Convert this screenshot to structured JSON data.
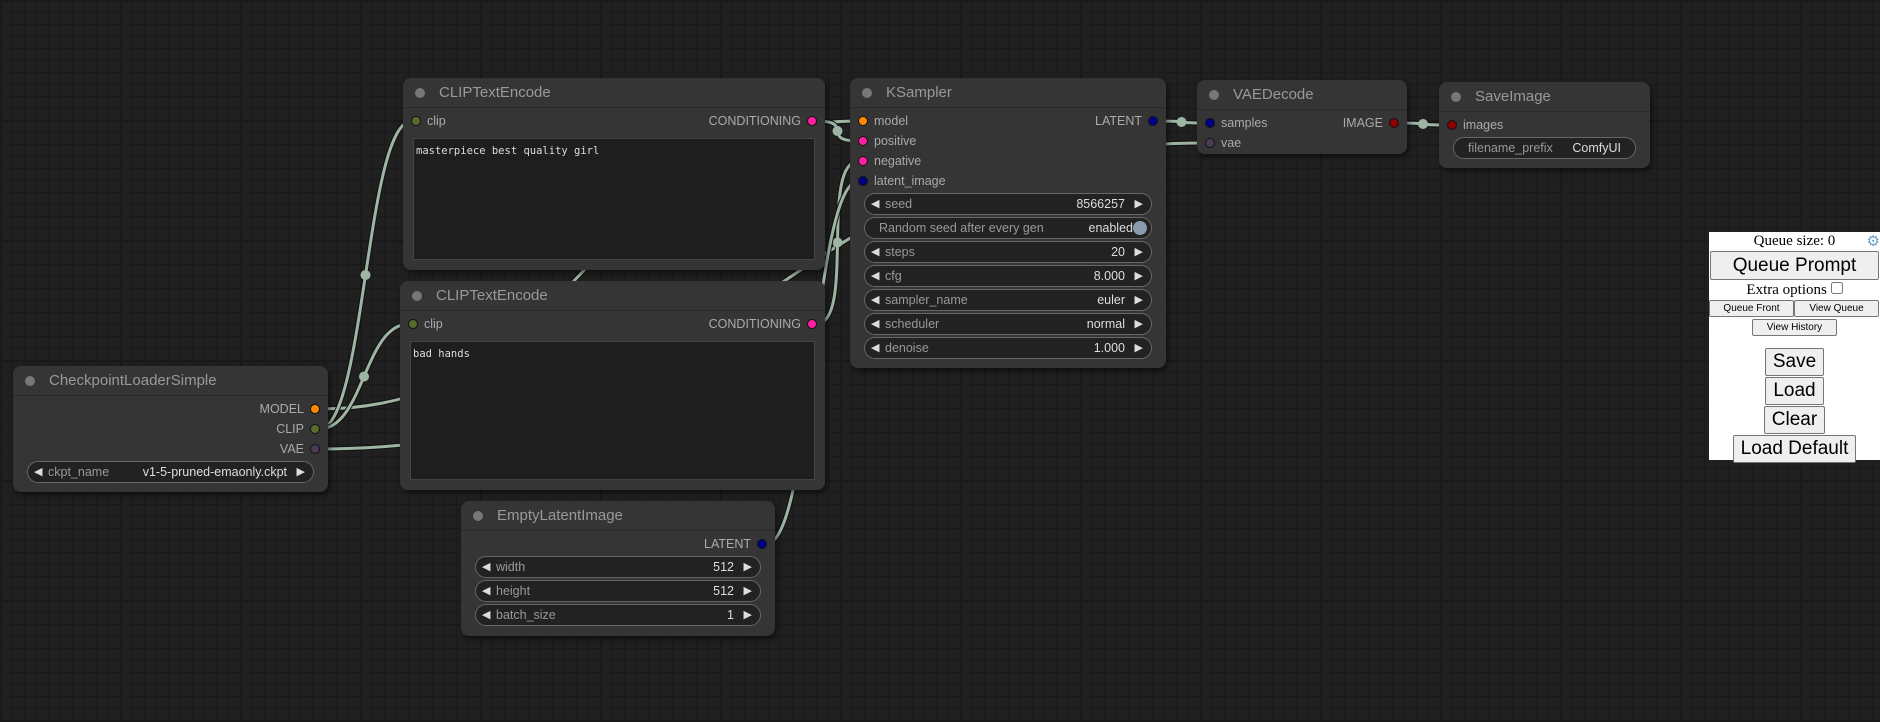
{
  "link_color": "#9fb5a3",
  "slot_colors": {
    "MODEL": "#ff8800",
    "CLIP": "#5a6b2b",
    "VAE": "#4a3a55",
    "CONDITIONING": "#ff1fa0",
    "LATENT": "#000088",
    "IMAGE": "#880000"
  },
  "nodes": [
    {
      "id": "ckpt",
      "title": "CheckpointLoaderSimple",
      "inputs": [],
      "outputs": [
        {
          "label": "MODEL",
          "type": "MODEL"
        },
        {
          "label": "CLIP",
          "type": "CLIP"
        },
        {
          "label": "VAE",
          "type": "VAE"
        }
      ],
      "widgets": [
        {
          "kind": "combo",
          "label": "ckpt_name",
          "value": "v1-5-pruned-emaonly.ckpt"
        }
      ]
    },
    {
      "id": "clip_pos",
      "title": "CLIPTextEncode",
      "inputs": [
        {
          "label": "clip",
          "type": "CLIP"
        }
      ],
      "outputs": [
        {
          "label": "CONDITIONING",
          "type": "CONDITIONING"
        }
      ],
      "text": "masterpiece best quality girl"
    },
    {
      "id": "clip_neg",
      "title": "CLIPTextEncode",
      "inputs": [
        {
          "label": "clip",
          "type": "CLIP"
        }
      ],
      "outputs": [
        {
          "label": "CONDITIONING",
          "type": "CONDITIONING"
        }
      ],
      "text": "bad hands"
    },
    {
      "id": "latent",
      "title": "EmptyLatentImage",
      "inputs": [],
      "outputs": [
        {
          "label": "LATENT",
          "type": "LATENT"
        }
      ],
      "widgets": [
        {
          "kind": "number",
          "label": "width",
          "value": "512"
        },
        {
          "kind": "number",
          "label": "height",
          "value": "512"
        },
        {
          "kind": "number",
          "label": "batch_size",
          "value": "1"
        }
      ]
    },
    {
      "id": "ksampler",
      "title": "KSampler",
      "inputs": [
        {
          "label": "model",
          "type": "MODEL"
        },
        {
          "label": "positive",
          "type": "CONDITIONING"
        },
        {
          "label": "negative",
          "type": "CONDITIONING"
        },
        {
          "label": "latent_image",
          "type": "LATENT"
        }
      ],
      "outputs": [
        {
          "label": "LATENT",
          "type": "LATENT"
        }
      ],
      "widgets": [
        {
          "kind": "number",
          "label": "seed",
          "value": "8566257"
        },
        {
          "kind": "toggle",
          "label": "Random seed after every gen",
          "value": "enabled"
        },
        {
          "kind": "number",
          "label": "steps",
          "value": "20"
        },
        {
          "kind": "number",
          "label": "cfg",
          "value": "8.000"
        },
        {
          "kind": "combo",
          "label": "sampler_name",
          "value": "euler"
        },
        {
          "kind": "combo",
          "label": "scheduler",
          "value": "normal"
        },
        {
          "kind": "number",
          "label": "denoise",
          "value": "1.000"
        }
      ]
    },
    {
      "id": "vaedecode",
      "title": "VAEDecode",
      "inputs": [
        {
          "label": "samples",
          "type": "LATENT"
        },
        {
          "label": "vae",
          "type": "VAE"
        }
      ],
      "outputs": [
        {
          "label": "IMAGE",
          "type": "IMAGE"
        }
      ]
    },
    {
      "id": "save",
      "title": "SaveImage",
      "inputs": [
        {
          "label": "images",
          "type": "IMAGE"
        }
      ],
      "outputs": [],
      "widgets": [
        {
          "kind": "text",
          "label": "filename_prefix",
          "value": "ComfyUI"
        }
      ]
    }
  ],
  "links": [
    [
      "ckpt",
      0,
      "ksampler",
      0
    ],
    [
      "ckpt",
      1,
      "clip_pos",
      0
    ],
    [
      "ckpt",
      1,
      "clip_neg",
      0
    ],
    [
      "ckpt",
      2,
      "vaedecode",
      1
    ],
    [
      "clip_pos",
      0,
      "ksampler",
      1
    ],
    [
      "clip_neg",
      0,
      "ksampler",
      2
    ],
    [
      "latent",
      0,
      "ksampler",
      3
    ],
    [
      "ksampler",
      0,
      "vaedecode",
      0
    ],
    [
      "vaedecode",
      0,
      "save",
      0
    ]
  ],
  "panel": {
    "queue_size": "Queue size: 0",
    "queue_prompt": "Queue Prompt",
    "extra_options": "Extra options",
    "queue_front": "Queue Front",
    "view_queue": "View Queue",
    "view_history": "View History",
    "save": "Save",
    "load": "Load",
    "clear": "Clear",
    "load_default": "Load Default",
    "settings_icon": "gear-icon"
  }
}
